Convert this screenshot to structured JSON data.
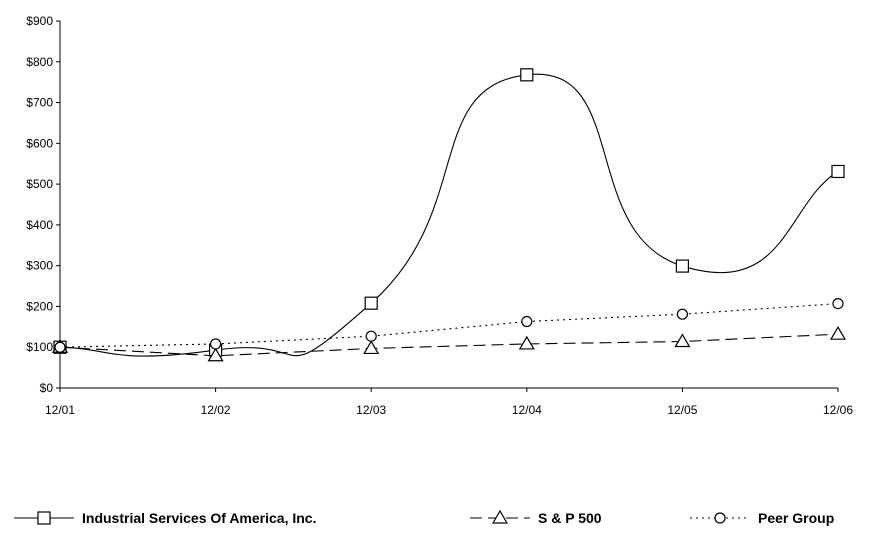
{
  "chart_data": {
    "type": "line",
    "title": "",
    "xlabel": "",
    "ylabel": "",
    "categories": [
      "12/01",
      "12/02",
      "12/03",
      "12/04",
      "12/05",
      "12/06"
    ],
    "y_tick_labels": [
      "$0",
      "$100",
      "$200",
      "$300",
      "$400",
      "$500",
      "$600",
      "$700",
      "$800",
      "$900"
    ],
    "ylim": [
      0,
      900
    ],
    "y_step": 100,
    "grid": false,
    "legend_position": "bottom",
    "series": [
      {
        "name": "Industrial Services Of America, Inc.",
        "values": [
          100,
          93,
          208,
          768,
          299,
          531
        ],
        "marker": "square",
        "line_style": "solid",
        "smooth": true,
        "color": "#000000"
      },
      {
        "name": "S & P 500",
        "values": [
          100,
          79,
          97,
          108,
          114,
          132
        ],
        "marker": "triangle",
        "line_style": "dashed",
        "smooth": false,
        "color": "#000000"
      },
      {
        "name": "Peer Group",
        "values": [
          100,
          108,
          127,
          163,
          181,
          207
        ],
        "marker": "circle",
        "line_style": "dotted",
        "smooth": false,
        "color": "#000000"
      }
    ]
  }
}
